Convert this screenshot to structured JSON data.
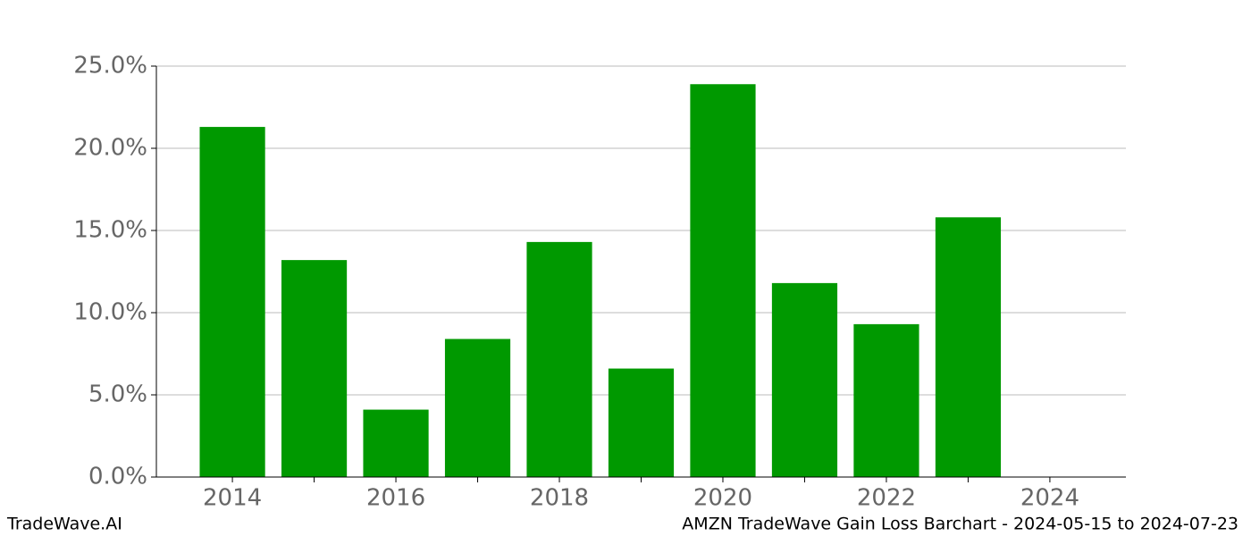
{
  "chart_data": {
    "type": "bar",
    "x": [
      2014,
      2015,
      2016,
      2017,
      2018,
      2019,
      2020,
      2021,
      2022,
      2023
    ],
    "values": [
      21.3,
      13.2,
      4.1,
      8.4,
      14.3,
      6.6,
      23.9,
      11.8,
      9.3,
      15.8
    ],
    "color": "#009900",
    "xlim": [
      2013.07,
      2024.93
    ],
    "xticks": [
      2014,
      2016,
      2018,
      2020,
      2022,
      2024
    ],
    "xminorticks": [
      2015,
      2017,
      2019,
      2021,
      2023
    ],
    "ylim": [
      0,
      25
    ],
    "yticks": [
      {
        "value": 0,
        "label": "0.0%"
      },
      {
        "value": 5,
        "label": "5.0%"
      },
      {
        "value": 10,
        "label": "10.0%"
      },
      {
        "value": 15,
        "label": "15.0%"
      },
      {
        "value": 20,
        "label": "20.0%"
      },
      {
        "value": 25,
        "label": "25.0%"
      }
    ],
    "grid": true,
    "watermark": "TradeWave.AI",
    "caption": "AMZN TradeWave Gain Loss Barchart - 2024-05-15 to 2024-07-23"
  }
}
